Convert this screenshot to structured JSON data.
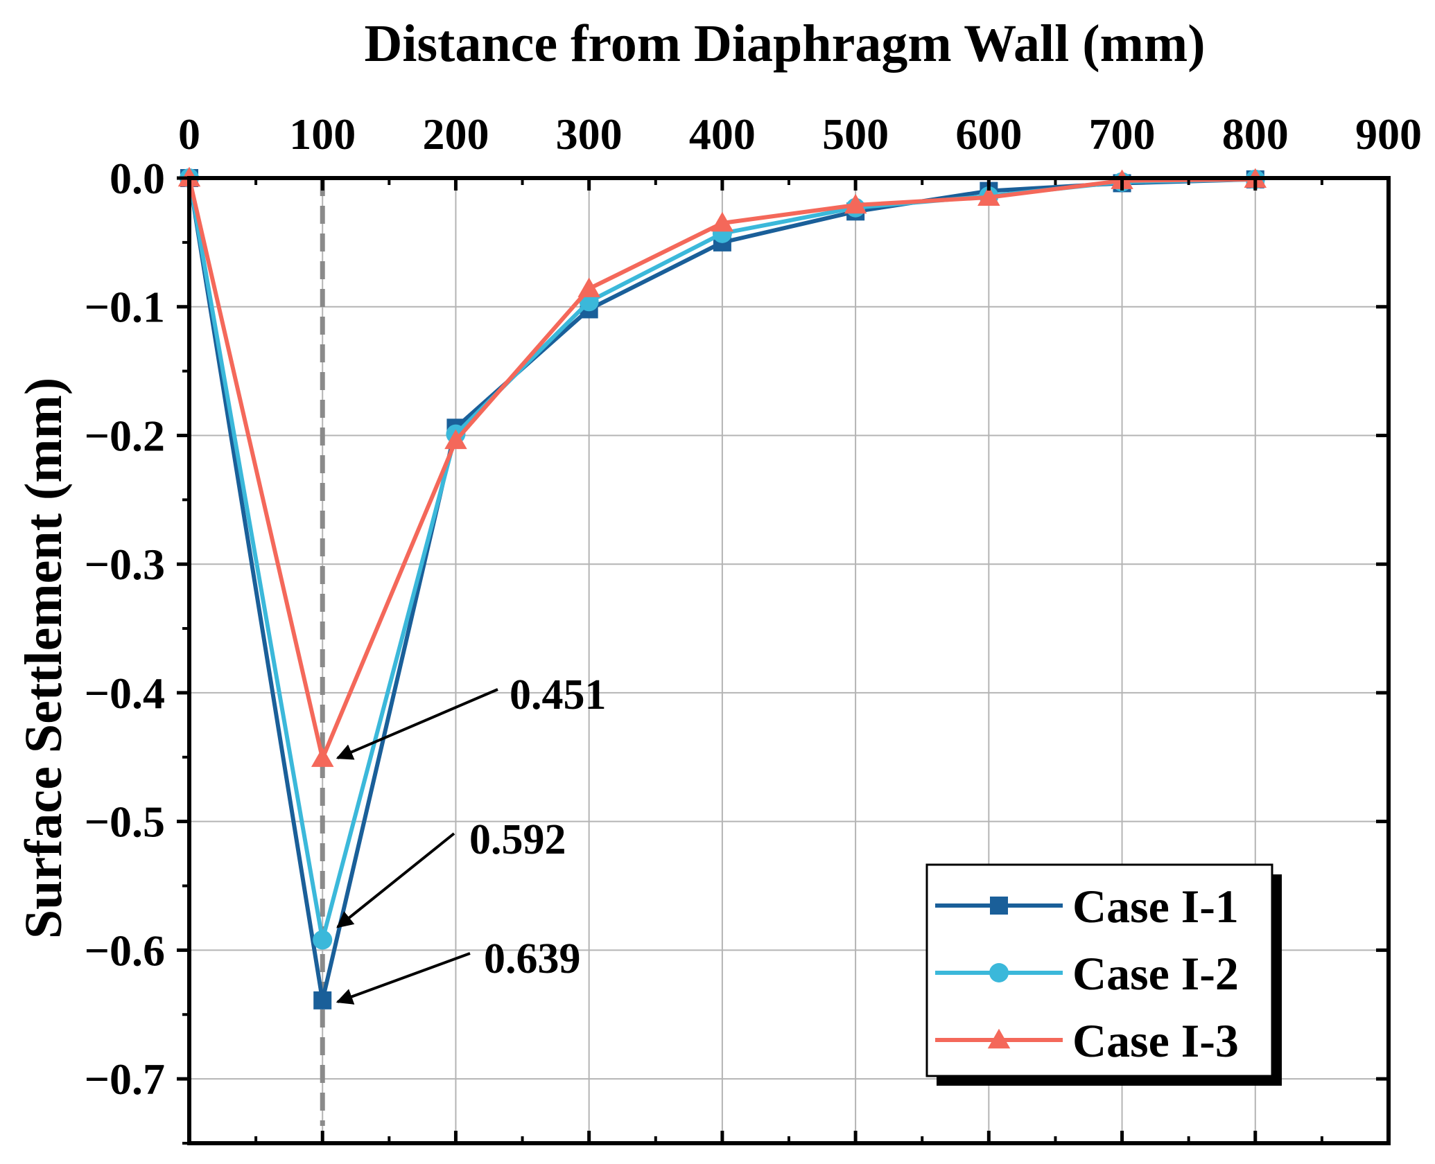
{
  "chart_data": {
    "type": "line",
    "title": "",
    "xlabel": "Distance from Diaphragm Wall (mm)",
    "ylabel": "Surface Settlement (mm)",
    "xlim": [
      0,
      900
    ],
    "ylim": [
      -0.75,
      0.0
    ],
    "x_ticks": [
      "0",
      "100",
      "200",
      "300",
      "400",
      "500",
      "600",
      "700",
      "800",
      "900"
    ],
    "y_ticks": [
      "0.0",
      "−0.1",
      "−0.2",
      "−0.3",
      "−0.4",
      "−0.5",
      "−0.6",
      "−0.7"
    ],
    "x_axis_position": "top",
    "grid": true,
    "legend_position": "bottom-right",
    "reference_line_x": 100,
    "x": [
      0,
      100,
      200,
      300,
      400,
      500,
      600,
      700,
      800
    ],
    "series": [
      {
        "name": "Case I-1",
        "marker": "square",
        "color": "#1a5f99",
        "values": [
          0,
          -0.639,
          -0.194,
          -0.102,
          -0.05,
          -0.026,
          -0.01,
          -0.004,
          -0.001
        ]
      },
      {
        "name": "Case I-2",
        "marker": "circle",
        "color": "#3bb8da",
        "values": [
          0,
          -0.592,
          -0.199,
          -0.096,
          -0.043,
          -0.023,
          -0.014,
          -0.003,
          -0.001
        ]
      },
      {
        "name": "Case I-3",
        "marker": "triangle",
        "color": "#f4685a",
        "values": [
          0,
          -0.451,
          -0.204,
          -0.086,
          -0.035,
          -0.021,
          -0.015,
          -0.002,
          -0.001
        ]
      }
    ],
    "annotations": [
      {
        "text": "0.451",
        "x": 100,
        "y": -0.451
      },
      {
        "text": "0.592",
        "x": 100,
        "y": -0.592
      },
      {
        "text": "0.639",
        "x": 100,
        "y": -0.639
      }
    ]
  }
}
